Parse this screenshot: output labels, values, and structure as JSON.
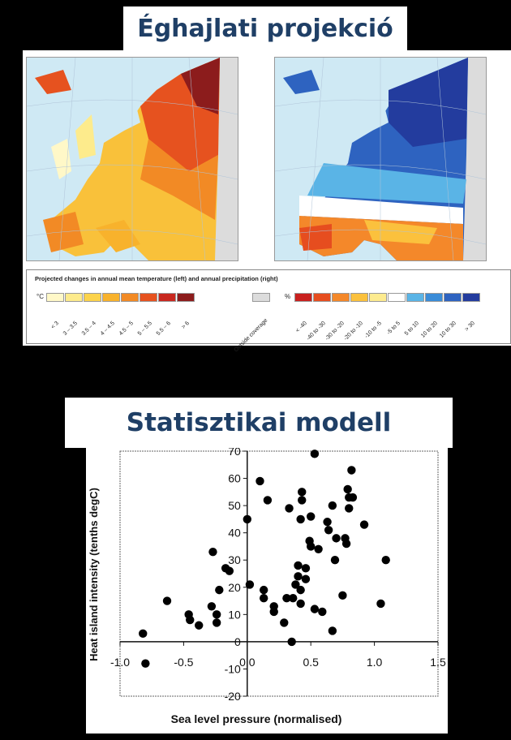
{
  "header1": {
    "title": "Éghajlati projekció"
  },
  "header2": {
    "title": "Statisztikai modell"
  },
  "maps": {
    "legend_title": "Projected changes in annual mean temperature (left) and annual precipitation (right)",
    "temp_unit": "°C",
    "precip_unit": "%",
    "outside_label": "Outside coverage",
    "outside_color": "#dcdcdc",
    "temp_classes": [
      {
        "label": "< 3",
        "color": "#fff8c8"
      },
      {
        "label": "3 – 3.5",
        "color": "#fdeb8c"
      },
      {
        "label": "3.5 – 4",
        "color": "#fcd34b"
      },
      {
        "label": "4 – 4.5",
        "color": "#f8b22c"
      },
      {
        "label": "4.5 – 5",
        "color": "#f28a25"
      },
      {
        "label": "5 – 5.5",
        "color": "#e6521f"
      },
      {
        "label": "5.5 – 6",
        "color": "#c8281f"
      },
      {
        "label": "> 6",
        "color": "#8c1c1c"
      }
    ],
    "precip_classes": [
      {
        "label": "< -40",
        "color": "#c8201e"
      },
      {
        "label": "-40 to -30",
        "color": "#e64d1f"
      },
      {
        "label": "-30 to -20",
        "color": "#f4882a"
      },
      {
        "label": "-20 to -10",
        "color": "#fbc13d"
      },
      {
        "label": "-10 to -5",
        "color": "#fdeb8f"
      },
      {
        "label": "-5 to 5",
        "color": "#ffffff"
      },
      {
        "label": "5 to 10",
        "color": "#5ab4e6"
      },
      {
        "label": "10 to 20",
        "color": "#3a8cd8"
      },
      {
        "label": "10 to 30",
        "color": "#2e63c0"
      },
      {
        "label": "> 30",
        "color": "#233c9e"
      }
    ]
  },
  "chart_data": {
    "type": "scatter",
    "xlabel": "Sea level pressure (normalised)",
    "ylabel": "Heat island intensity (tenths degC)",
    "xlim": [
      -1.0,
      1.5
    ],
    "ylim": [
      -20,
      70
    ],
    "xticks": [
      "-1.0",
      "-0.5",
      "0.0",
      "0.5",
      "1.0",
      "1.5"
    ],
    "yticks": [
      "-20",
      "-10",
      "0",
      "10",
      "20",
      "30",
      "40",
      "50",
      "60",
      "70"
    ],
    "points": [
      [
        -0.82,
        3
      ],
      [
        -0.8,
        -8
      ],
      [
        -0.63,
        15
      ],
      [
        -0.46,
        10
      ],
      [
        -0.45,
        8
      ],
      [
        -0.38,
        6
      ],
      [
        -0.28,
        13
      ],
      [
        -0.27,
        33
      ],
      [
        -0.24,
        10
      ],
      [
        -0.24,
        7
      ],
      [
        -0.22,
        19
      ],
      [
        -0.17,
        27
      ],
      [
        -0.14,
        26
      ],
      [
        0.0,
        45
      ],
      [
        0.02,
        21
      ],
      [
        0.1,
        59
      ],
      [
        0.13,
        16
      ],
      [
        0.13,
        19
      ],
      [
        0.16,
        52
      ],
      [
        0.21,
        11
      ],
      [
        0.21,
        13
      ],
      [
        0.29,
        7
      ],
      [
        0.31,
        16
      ],
      [
        0.33,
        49
      ],
      [
        0.35,
        0
      ],
      [
        0.36,
        16
      ],
      [
        0.38,
        21
      ],
      [
        0.4,
        28
      ],
      [
        0.4,
        24
      ],
      [
        0.42,
        14
      ],
      [
        0.42,
        19
      ],
      [
        0.42,
        45
      ],
      [
        0.43,
        52
      ],
      [
        0.43,
        55
      ],
      [
        0.46,
        27
      ],
      [
        0.46,
        23
      ],
      [
        0.49,
        37
      ],
      [
        0.5,
        35
      ],
      [
        0.5,
        46
      ],
      [
        0.53,
        12
      ],
      [
        0.53,
        69
      ],
      [
        0.56,
        34
      ],
      [
        0.59,
        11
      ],
      [
        0.63,
        44
      ],
      [
        0.64,
        41
      ],
      [
        0.67,
        50
      ],
      [
        0.67,
        4
      ],
      [
        0.69,
        30
      ],
      [
        0.7,
        38
      ],
      [
        0.75,
        17
      ],
      [
        0.77,
        38
      ],
      [
        0.78,
        36
      ],
      [
        0.79,
        56
      ],
      [
        0.8,
        49
      ],
      [
        0.8,
        53
      ],
      [
        0.82,
        63
      ],
      [
        0.83,
        53
      ],
      [
        0.92,
        43
      ],
      [
        1.05,
        14
      ],
      [
        1.09,
        30
      ]
    ]
  }
}
